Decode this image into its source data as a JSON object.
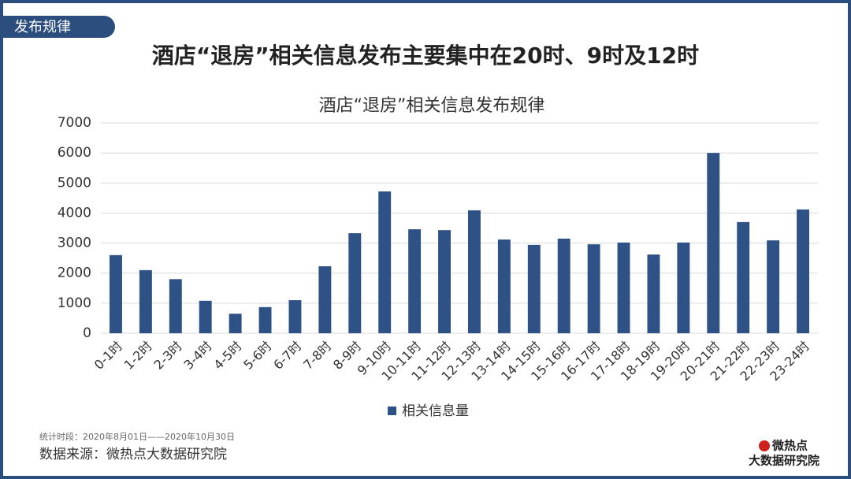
{
  "chart_data": {
    "type": "bar",
    "tag": "发布规律",
    "headline": "酒店“退房”相关信息发布主要集中在20时、9时及12时",
    "title": "酒店“退房”相关信息发布规律",
    "categories": [
      "0-1时",
      "1-2时",
      "2-3时",
      "3-4时",
      "4-5时",
      "5-6时",
      "6-7时",
      "7-8时",
      "8-9时",
      "9-10时",
      "10-11时",
      "11-12时",
      "12-13时",
      "13-14时",
      "14-15时",
      "15-16时",
      "16-17时",
      "17-18时",
      "18-19时",
      "19-20时",
      "20-21时",
      "21-22时",
      "22-23时",
      "23-24时"
    ],
    "series": [
      {
        "name": "相关信息量",
        "color": "#2e5285",
        "values": [
          2600,
          2100,
          1800,
          1080,
          650,
          870,
          1100,
          2230,
          3330,
          4720,
          3460,
          3430,
          4090,
          3120,
          2940,
          3150,
          2960,
          3020,
          2620,
          3020,
          6000,
          3700,
          3090,
          4120
        ]
      }
    ],
    "ylim": [
      0,
      7000
    ],
    "yticks": [
      0,
      1000,
      2000,
      3000,
      4000,
      5000,
      6000,
      7000
    ],
    "grid": true,
    "legend": "bottom",
    "note": "统计时段：2020年8月01日——2020年10月30日",
    "source": "数据来源：微热点大数据研究院",
    "logo": [
      "微热点",
      "大数据研究院"
    ]
  }
}
